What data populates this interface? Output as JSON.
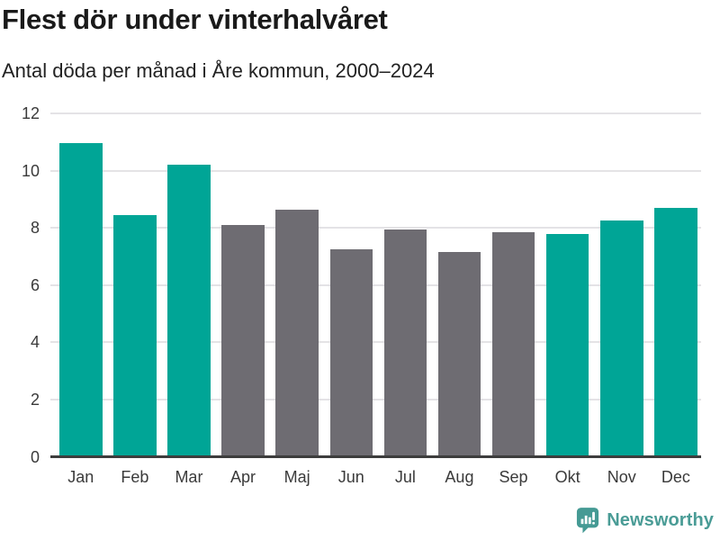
{
  "chart_data": {
    "type": "bar",
    "title": "Flest dör under vinterhalvåret",
    "subtitle": "Antal döda per månad i Åre kommun, 2000–2024",
    "categories": [
      "Jan",
      "Feb",
      "Mar",
      "Apr",
      "Maj",
      "Jun",
      "Jul",
      "Aug",
      "Sep",
      "Okt",
      "Nov",
      "Dec"
    ],
    "values": [
      10.95,
      8.45,
      10.2,
      8.1,
      8.65,
      7.25,
      7.95,
      7.15,
      7.85,
      7.8,
      8.25,
      8.7
    ],
    "bar_color_keys": [
      "winter",
      "winter",
      "winter",
      "summer",
      "summer",
      "summer",
      "summer",
      "summer",
      "summer",
      "winter",
      "winter",
      "winter"
    ],
    "palette": {
      "winter": "#00a596",
      "summer": "#6e6c72"
    },
    "ylim": [
      0,
      12
    ],
    "yticks": [
      0,
      2,
      4,
      6,
      8,
      10,
      12
    ],
    "grid": true,
    "legend": false,
    "xlabel": "",
    "ylabel": ""
  },
  "colors": {
    "grid": "#e4e3e6",
    "axis": "#3d3d3d",
    "brand": "#4a9c96",
    "brand_icon": "#459a94"
  },
  "footer": {
    "brand": "Newsworthy"
  }
}
